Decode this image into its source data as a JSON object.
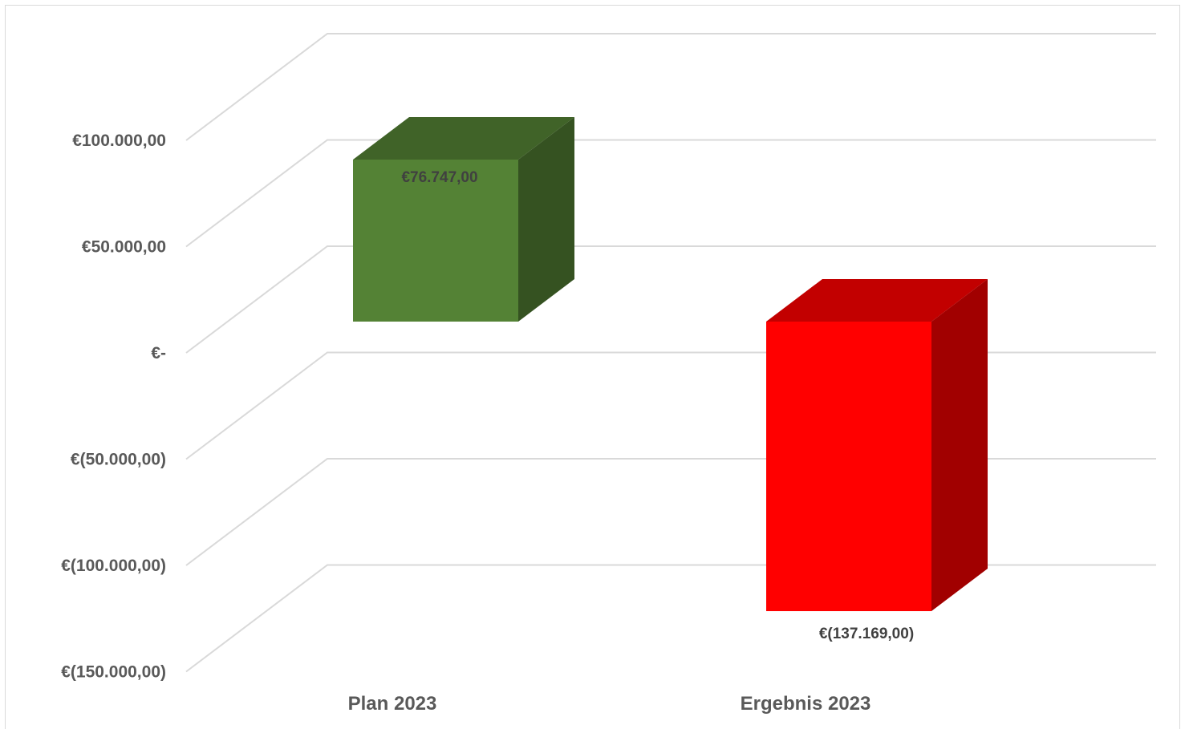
{
  "chart_data": {
    "type": "bar",
    "style": "3d-column",
    "categories": [
      "Plan 2023",
      "Ergebnis 2023"
    ],
    "values": [
      76747,
      -137169
    ],
    "data_labels": [
      "€76.747,00",
      "€(137.169,00)"
    ],
    "bar_colors": [
      "#548235",
      "#ff0000"
    ],
    "ylim": [
      -150000,
      100000
    ],
    "yticks": [
      100000,
      50000,
      0,
      -50000,
      -100000,
      -150000
    ],
    "ytick_labels": [
      "€100.000,00",
      "€50.000,00",
      "€-",
      "€(50.000,00)",
      "€(100.000,00)",
      "€(150.000,00)"
    ],
    "grid": true,
    "legend": "none",
    "title": "",
    "xlabel": "",
    "ylabel": ""
  }
}
